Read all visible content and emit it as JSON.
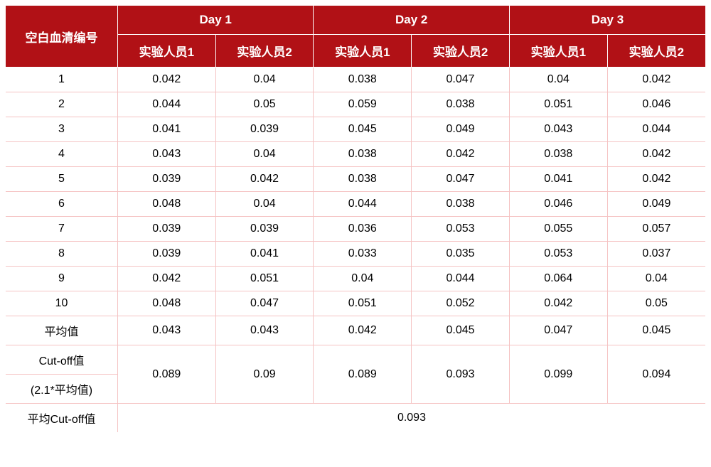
{
  "table": {
    "header": {
      "col0": "空白血清编号",
      "day_groups": [
        "Day 1",
        "Day 2",
        "Day 3"
      ],
      "sub_headers": [
        "实验人员1",
        "实验人员2",
        "实验人员1",
        "实验人员2",
        "实验人员1",
        "实验人员2"
      ]
    },
    "row_labels": [
      "1",
      "2",
      "3",
      "4",
      "5",
      "6",
      "7",
      "8",
      "9",
      "10"
    ],
    "rows": [
      [
        "0.042",
        "0.04",
        "0.038",
        "0.047",
        "0.04",
        "0.042"
      ],
      [
        "0.044",
        "0.05",
        "0.059",
        "0.038",
        "0.051",
        "0.046"
      ],
      [
        "0.041",
        "0.039",
        "0.045",
        "0.049",
        "0.043",
        "0.044"
      ],
      [
        "0.043",
        "0.04",
        "0.038",
        "0.042",
        "0.038",
        "0.042"
      ],
      [
        "0.039",
        "0.042",
        "0.038",
        "0.047",
        "0.041",
        "0.042"
      ],
      [
        "0.048",
        "0.04",
        "0.044",
        "0.038",
        "0.046",
        "0.049"
      ],
      [
        "0.039",
        "0.039",
        "0.036",
        "0.053",
        "0.055",
        "0.057"
      ],
      [
        "0.039",
        "0.041",
        "0.033",
        "0.035",
        "0.053",
        "0.037"
      ],
      [
        "0.042",
        "0.051",
        "0.04",
        "0.044",
        "0.064",
        "0.04"
      ],
      [
        "0.048",
        "0.047",
        "0.051",
        "0.052",
        "0.042",
        "0.05"
      ]
    ],
    "mean_label": "平均值",
    "mean_values": [
      "0.043",
      "0.043",
      "0.042",
      "0.045",
      "0.047",
      "0.045"
    ],
    "cutoff_label_top": "Cut-off值",
    "cutoff_label_bottom": "(2.1*平均值)",
    "cutoff_values": [
      "0.089",
      "0.09",
      "0.089",
      "0.093",
      "0.099",
      "0.094"
    ],
    "avg_cutoff_label": "平均Cut-off值",
    "avg_cutoff_value": "0.093"
  },
  "style": {
    "header_bg": "#b11116",
    "header_fg": "#ffffff",
    "cell_border": "#f5c3c3",
    "body_bg": "#ffffff",
    "body_fg": "#000000",
    "header_fontsize": 17,
    "body_fontsize": 16,
    "col0_width_pct": 16,
    "data_col_width_pct": 14
  }
}
